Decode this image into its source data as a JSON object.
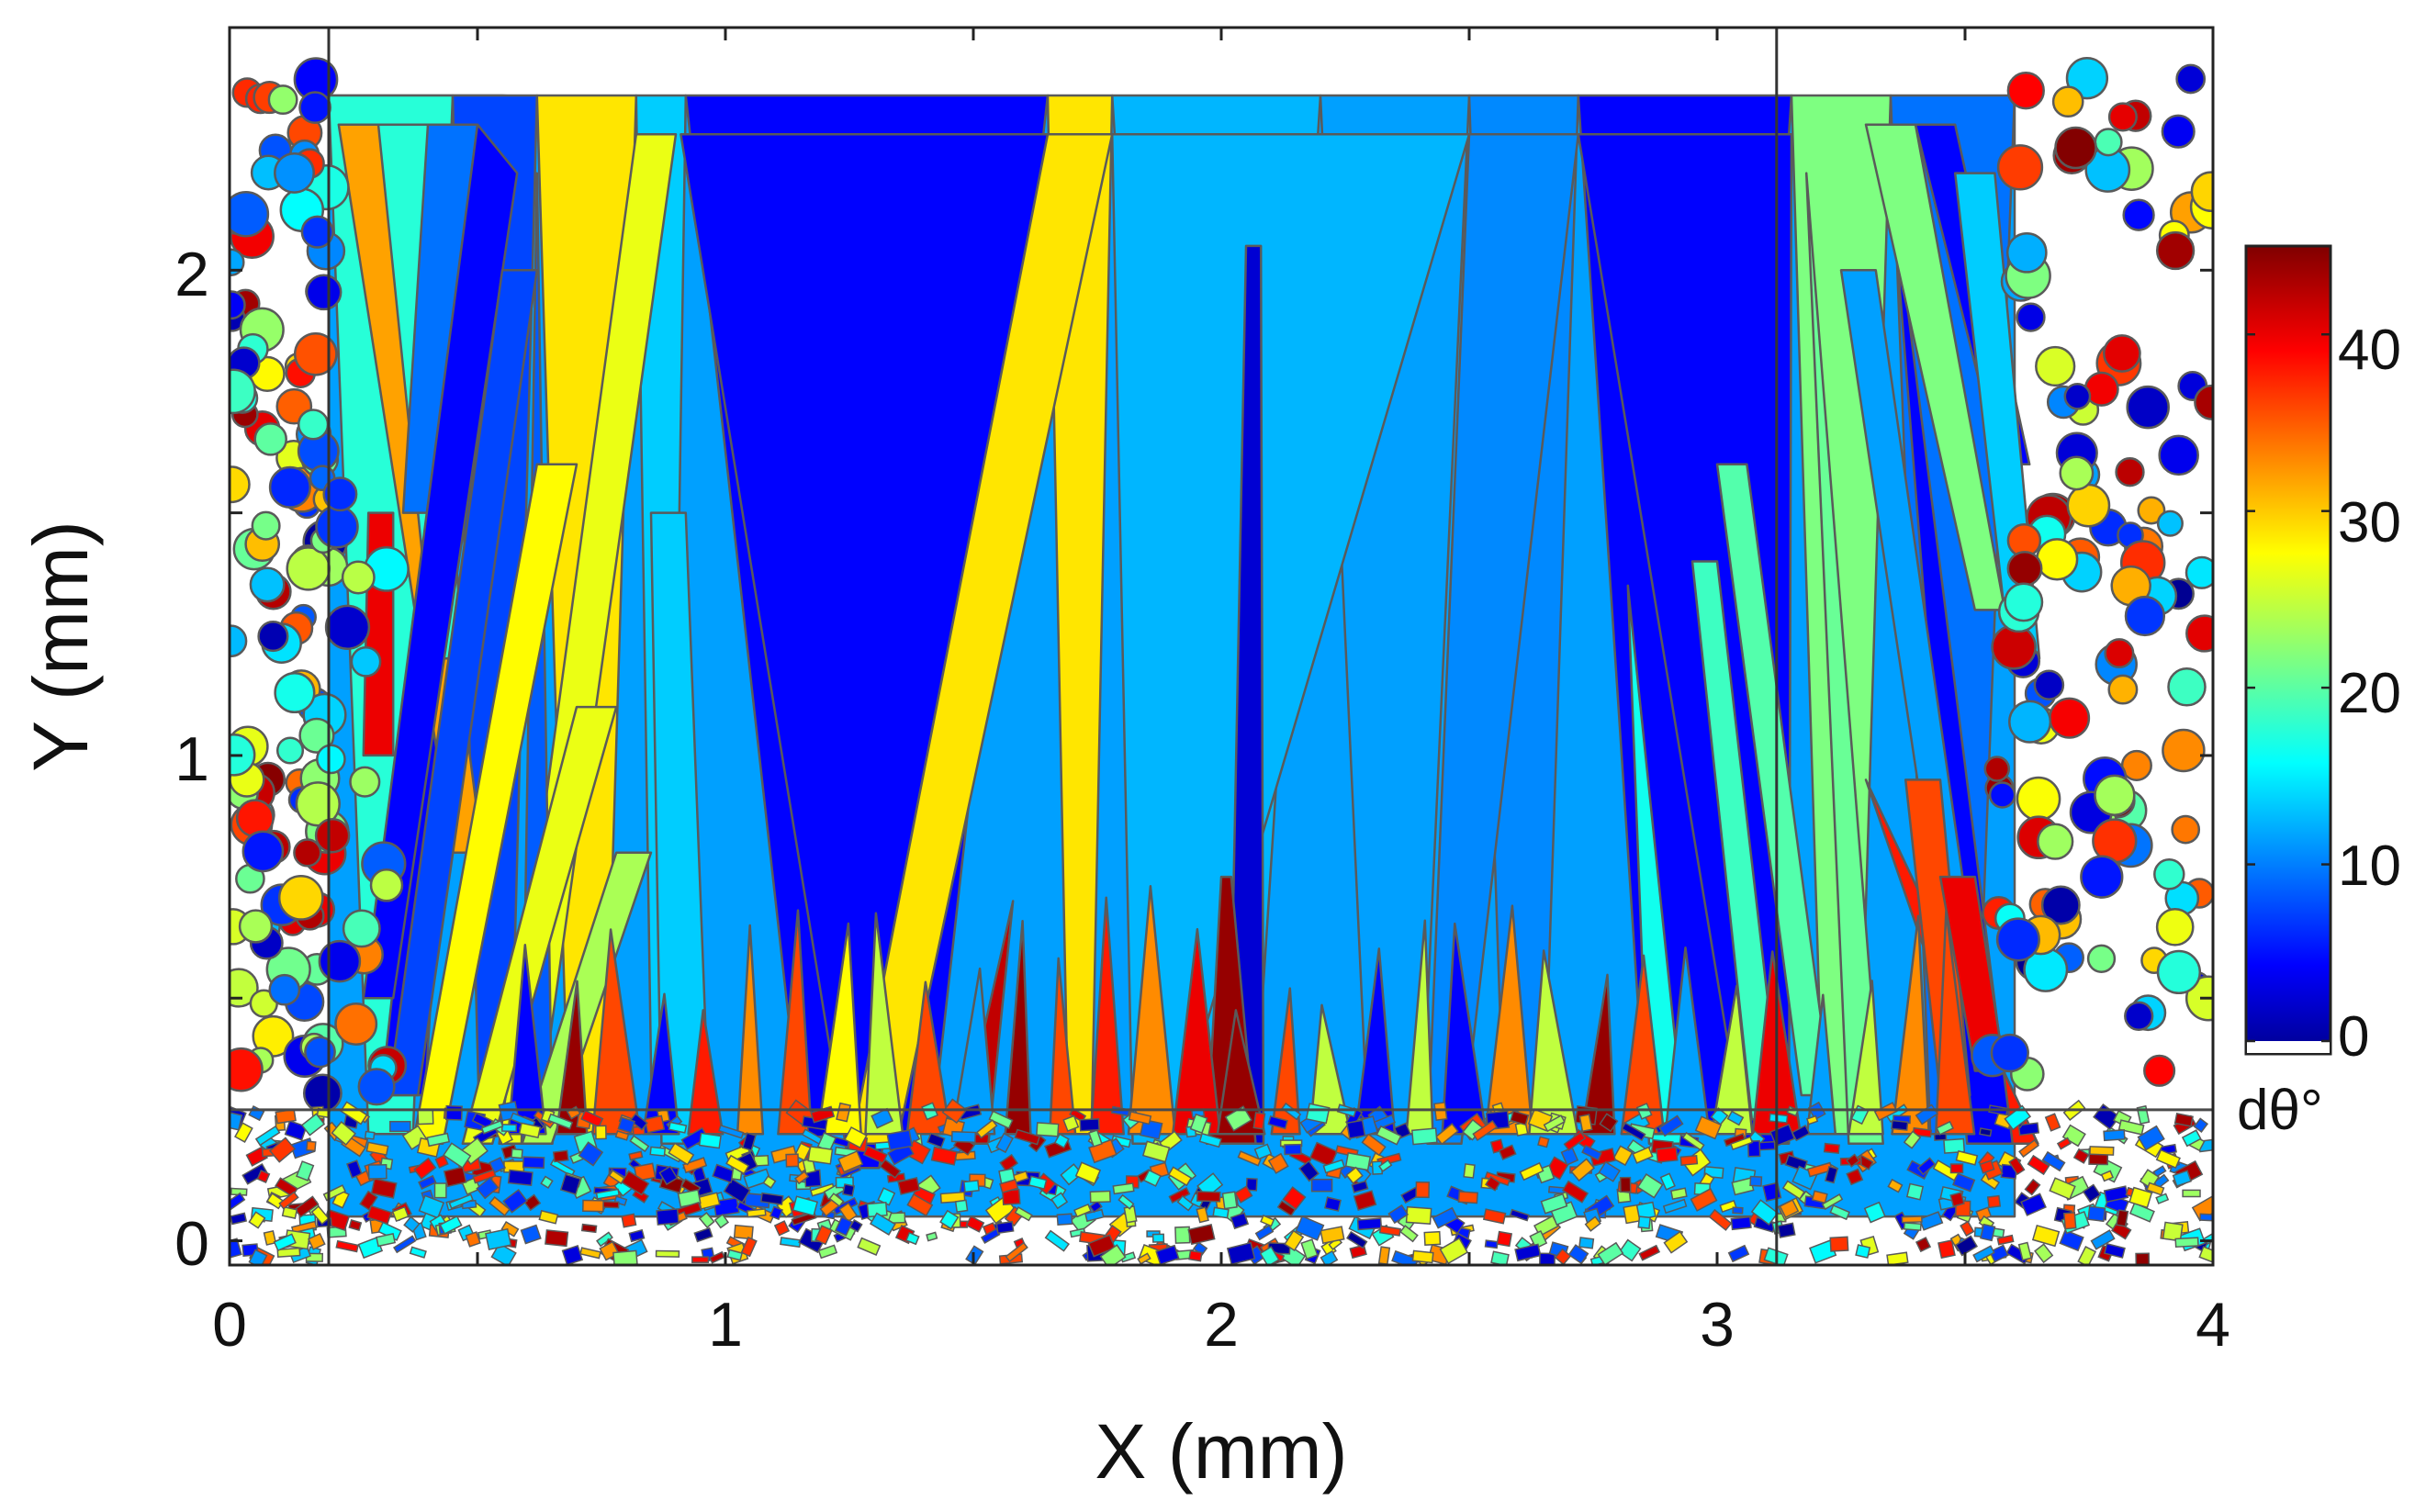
{
  "chart_data": {
    "type": "heatmap",
    "xlabel": "X (mm)",
    "ylabel": "Y (mm)",
    "xlim": [
      0,
      4
    ],
    "ylim": [
      -0.05,
      2.5
    ],
    "x_ticks": [
      "0",
      "1",
      "2",
      "3",
      "4"
    ],
    "y_ticks": [
      "0",
      "1",
      "2"
    ],
    "colorbar": {
      "label": "dθ°",
      "range": [
        0,
        45
      ],
      "ticks": [
        "0",
        "10",
        "20",
        "30",
        "40"
      ],
      "colormap": "jet"
    },
    "columnar_grains": [
      {
        "bottom_x": 1.28,
        "bottom_y": 0.15,
        "top_x_left": 0.91,
        "top_x_right": 1.65,
        "top_y": 2.28,
        "misorientation": 5
      },
      {
        "bottom_x": 1.3,
        "bottom_y": 0.2,
        "top_x_left": 1.65,
        "top_x_right": 1.78,
        "top_y": 2.28,
        "misorientation": 29
      },
      {
        "bottom_x": 1.86,
        "bottom_y": 0.2,
        "top_x_left": 1.78,
        "top_x_right": 2.5,
        "top_y": 2.28,
        "misorientation": 13
      },
      {
        "bottom_x": 2.45,
        "bottom_y": 0.2,
        "top_x_left": 2.5,
        "top_x_right": 2.72,
        "top_y": 2.28,
        "misorientation": 11
      },
      {
        "bottom_x": 3.1,
        "bottom_y": 0.2,
        "top_x_left": 2.72,
        "top_x_right": 3.15,
        "top_y": 2.28,
        "misorientation": 5
      },
      {
        "bottom_x": 0.58,
        "bottom_y": 0.2,
        "top_x_left": 0.82,
        "top_x_right": 0.9,
        "top_y": 2.28,
        "misorientation": 27
      },
      {
        "bottom_x": 0.92,
        "bottom_y": 0.2,
        "top_x_left": 0.85,
        "top_x_right": 0.92,
        "top_y": 1.5,
        "misorientation": 14
      },
      {
        "bottom_x": 2.05,
        "bottom_y": 0.2,
        "top_x_left": 2.05,
        "top_x_right": 2.08,
        "top_y": 2.05,
        "misorientation": 3
      },
      {
        "bottom_x": 2.02,
        "bottom_y": 0.2,
        "top_x_left": 2.0,
        "top_x_right": 2.02,
        "top_y": 0.75,
        "misorientation": 44
      },
      {
        "bottom_x": 1.5,
        "bottom_y": 0.2,
        "top_x_left": 1.58,
        "top_x_right": 1.58,
        "top_y": 0.7,
        "misorientation": 42
      },
      {
        "bottom_x": 3.6,
        "bottom_y": 0.2,
        "top_x_left": 3.3,
        "top_x_right": 3.3,
        "top_y": 0.95,
        "misorientation": 38
      },
      {
        "bottom_x": 3.55,
        "bottom_y": 0.2,
        "top_x_left": 3.35,
        "top_x_right": 3.35,
        "top_y": 2.2,
        "misorientation": 5
      },
      {
        "bottom_x": 3.3,
        "bottom_y": 0.2,
        "top_x_left": 3.18,
        "top_x_right": 3.18,
        "top_y": 2.2,
        "misorientation": 21
      },
      {
        "bottom_x": 2.9,
        "bottom_y": 0.2,
        "top_x_left": 2.82,
        "top_x_right": 2.82,
        "top_y": 1.35,
        "misorientation": 17
      },
      {
        "bottom_x": 0.62,
        "bottom_y": 0.2,
        "top_x_left": 0.62,
        "top_x_right": 0.62,
        "top_y": 2.2,
        "misorientation": 9
      },
      {
        "bottom_x": 0.35,
        "bottom_y": 0.3,
        "top_x_left": 0.5,
        "top_x_right": 0.5,
        "top_y": 2.1,
        "misorientation": 5
      }
    ]
  }
}
